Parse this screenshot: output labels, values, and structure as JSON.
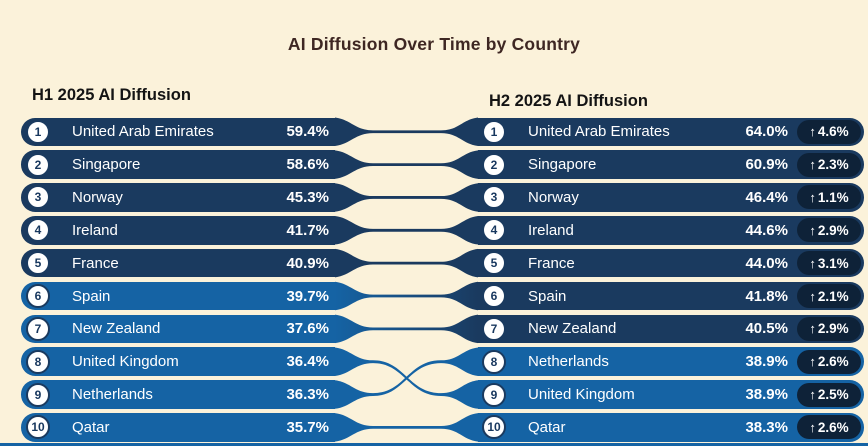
{
  "colors": {
    "background": "#FBF2DA",
    "title": "#3E2723",
    "header": "#141414",
    "dark_row": "#1A3A5F",
    "light_row": "#1563A4",
    "badge_bg": "#0E2238",
    "row_text": "#FFFFFF",
    "rank_circle_fill": "#FFFFFF",
    "rank_circle_border": "#1A3A5F",
    "rank_text": "#17375E",
    "bottom_bar": "#1563A4"
  },
  "chart_data": {
    "type": "table",
    "title": "AI Diffusion Over Time by Country",
    "up_arrow_glyph": "↑",
    "row_color_rule": "dark navy pill if value >= 40%, lighter blue pill otherwise",
    "rank_links": [
      [
        1,
        1
      ],
      [
        2,
        2
      ],
      [
        3,
        3
      ],
      [
        4,
        4
      ],
      [
        5,
        5
      ],
      [
        6,
        6
      ],
      [
        7,
        7
      ],
      [
        8,
        9
      ],
      [
        9,
        8
      ],
      [
        10,
        10
      ]
    ],
    "periods": [
      {
        "label": "H1 2025 AI Diffusion",
        "rows": [
          {
            "rank": "1",
            "country": "United Arab Emirates",
            "value": "59.4%"
          },
          {
            "rank": "2",
            "country": "Singapore",
            "value": "58.6%"
          },
          {
            "rank": "3",
            "country": "Norway",
            "value": "45.3%"
          },
          {
            "rank": "4",
            "country": "Ireland",
            "value": "41.7%"
          },
          {
            "rank": "5",
            "country": "France",
            "value": "40.9%"
          },
          {
            "rank": "6",
            "country": "Spain",
            "value": "39.7%"
          },
          {
            "rank": "7",
            "country": "New Zealand",
            "value": "37.6%"
          },
          {
            "rank": "8",
            "country": "United Kingdom",
            "value": "36.4%"
          },
          {
            "rank": "9",
            "country": "Netherlands",
            "value": "36.3%"
          },
          {
            "rank": "10",
            "country": "Qatar",
            "value": "35.7%"
          }
        ]
      },
      {
        "label": "H2 2025 AI Diffusion",
        "rows": [
          {
            "rank": "1",
            "country": "United Arab Emirates",
            "value": "64.0%",
            "change": "4.6%"
          },
          {
            "rank": "2",
            "country": "Singapore",
            "value": "60.9%",
            "change": "2.3%"
          },
          {
            "rank": "3",
            "country": "Norway",
            "value": "46.4%",
            "change": "1.1%"
          },
          {
            "rank": "4",
            "country": "Ireland",
            "value": "44.6%",
            "change": "2.9%"
          },
          {
            "rank": "5",
            "country": "France",
            "value": "44.0%",
            "change": "3.1%"
          },
          {
            "rank": "6",
            "country": "Spain",
            "value": "41.8%",
            "change": "2.1%"
          },
          {
            "rank": "7",
            "country": "New Zealand",
            "value": "40.5%",
            "change": "2.9%"
          },
          {
            "rank": "8",
            "country": "Netherlands",
            "value": "38.9%",
            "change": "2.6%"
          },
          {
            "rank": "9",
            "country": "United Kingdom",
            "value": "38.9%",
            "change": "2.5%"
          },
          {
            "rank": "10",
            "country": "Qatar",
            "value": "38.3%",
            "change": "2.6%"
          }
        ]
      }
    ]
  }
}
